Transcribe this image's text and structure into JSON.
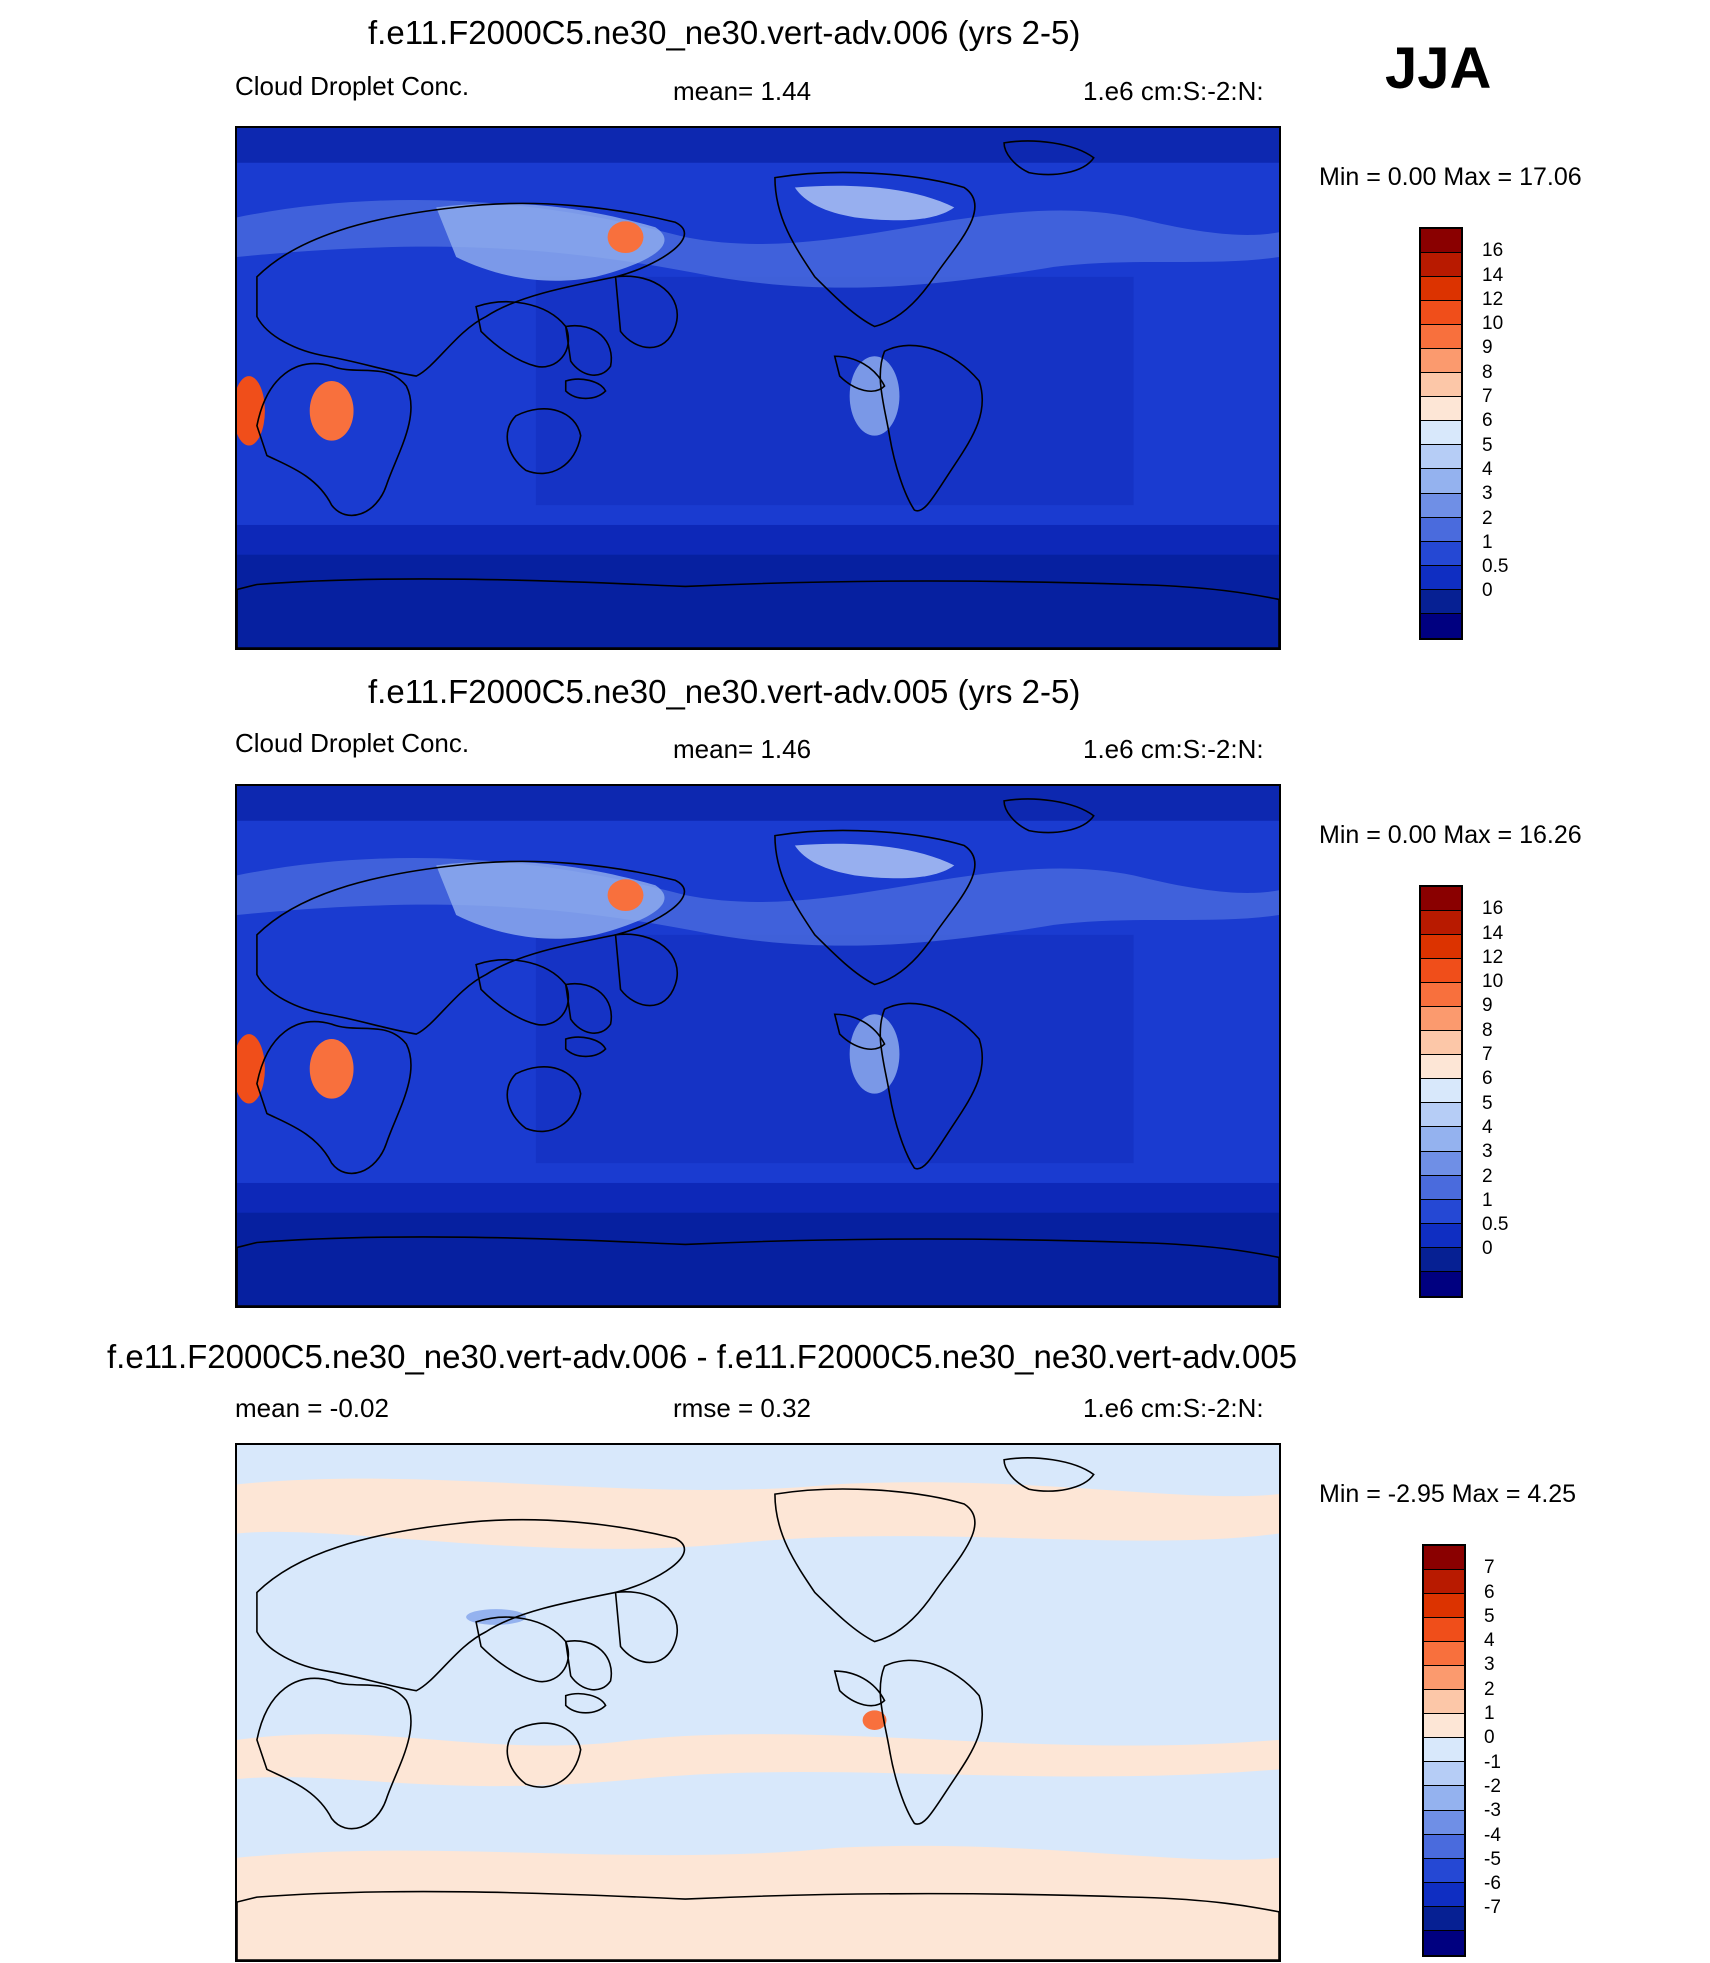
{
  "season": "JJA",
  "panels": [
    {
      "title": "f.e11.F2000C5.ne30_ne30.vert-adv.006 (yrs 2-5)",
      "left_label": "Cloud Droplet Conc.",
      "center_label": "mean=   1.44",
      "right_label": "1.e6 cm:S:-2:N:",
      "minmax": "Min =    0.00 Max =  17.06",
      "kind": "field",
      "colorbar": {
        "colors": [
          "#8a0000",
          "#b81a00",
          "#dc3300",
          "#f04e1a",
          "#f8703d",
          "#fb9a6e",
          "#fcc7a8",
          "#fde6d6",
          "#d8e8fb",
          "#b6cdf6",
          "#94b2ef",
          "#6f8fe6",
          "#4a6bdd",
          "#2548d4",
          "#0f2ec2",
          "#062093",
          "#000080"
        ],
        "labels": [
          "16",
          "14",
          "12",
          "10",
          "9",
          "8",
          "7",
          "6",
          "5",
          "4",
          "3",
          "2",
          "1",
          "0.5",
          "0"
        ]
      }
    },
    {
      "title": "f.e11.F2000C5.ne30_ne30.vert-adv.005 (yrs 2-5)",
      "left_label": "Cloud Droplet Conc.",
      "center_label": "mean=   1.46",
      "right_label": "1.e6 cm:S:-2:N:",
      "minmax": "Min =    0.00 Max =  16.26",
      "kind": "field",
      "colorbar": {
        "colors": [
          "#8a0000",
          "#b81a00",
          "#dc3300",
          "#f04e1a",
          "#f8703d",
          "#fb9a6e",
          "#fcc7a8",
          "#fde6d6",
          "#d8e8fb",
          "#b6cdf6",
          "#94b2ef",
          "#6f8fe6",
          "#4a6bdd",
          "#2548d4",
          "#0f2ec2",
          "#062093",
          "#000080"
        ],
        "labels": [
          "16",
          "14",
          "12",
          "10",
          "9",
          "8",
          "7",
          "6",
          "5",
          "4",
          "3",
          "2",
          "1",
          "0.5",
          "0"
        ]
      }
    },
    {
      "title": "f.e11.F2000C5.ne30_ne30.vert-adv.006 - f.e11.F2000C5.ne30_ne30.vert-adv.005",
      "left_label": "mean =  -0.02",
      "center_label": "rmse =   0.32",
      "right_label": "1.e6 cm:S:-2:N:",
      "minmax": "Min =  -2.95 Max =   4.25",
      "kind": "diff",
      "colorbar": {
        "colors": [
          "#8a0000",
          "#b81a00",
          "#dc3300",
          "#f04e1a",
          "#f8703d",
          "#fb9a6e",
          "#fcc7a8",
          "#fde6d6",
          "#d8e8fb",
          "#b6cdf6",
          "#94b2ef",
          "#6f8fe6",
          "#4a6bdd",
          "#2548d4",
          "#0f2ec2",
          "#062093",
          "#000080"
        ],
        "labels": [
          "7",
          "6",
          "5",
          "4",
          "3",
          "2",
          "1",
          "0",
          "-1",
          "-2",
          "-3",
          "-4",
          "-5",
          "-6",
          "-7"
        ]
      }
    }
  ]
}
